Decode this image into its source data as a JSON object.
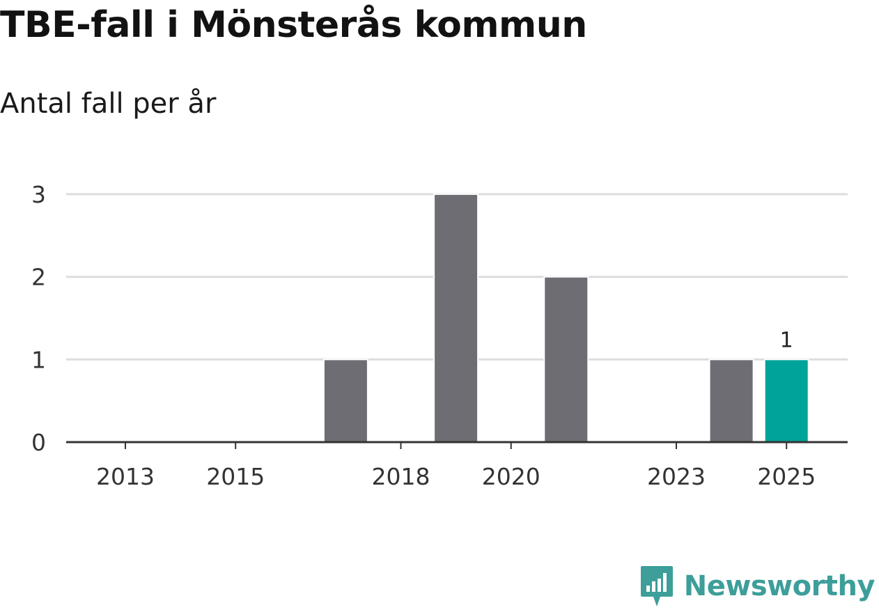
{
  "chart_data": {
    "type": "bar",
    "title": "TBE-fall i Mönsterås kommun",
    "subtitle": "Antal fall per år",
    "categories": [
      "2013",
      "2014",
      "2015",
      "2016",
      "2017",
      "2018",
      "2019",
      "2020",
      "2021",
      "2022",
      "2023",
      "2024",
      "2025"
    ],
    "values": [
      0,
      0,
      0,
      0,
      1,
      0,
      3,
      0,
      2,
      0,
      0,
      1,
      1
    ],
    "x_tick_labels": [
      "2013",
      "2015",
      "2018",
      "2020",
      "2023",
      "2025"
    ],
    "y_ticks": [
      0,
      1,
      2,
      3
    ],
    "ylim": [
      0,
      3
    ],
    "xlabel": "",
    "ylabel": "",
    "highlight_category": "2025",
    "data_labels": [
      {
        "category": "2025",
        "text": "1"
      }
    ],
    "colors": {
      "bar": "#6e6d73",
      "highlight": "#00a39a",
      "grid": "#dddddd",
      "axis": "#333333"
    }
  },
  "branding": {
    "name": "Newsworthy",
    "logo_color": "#3d9e9a"
  }
}
